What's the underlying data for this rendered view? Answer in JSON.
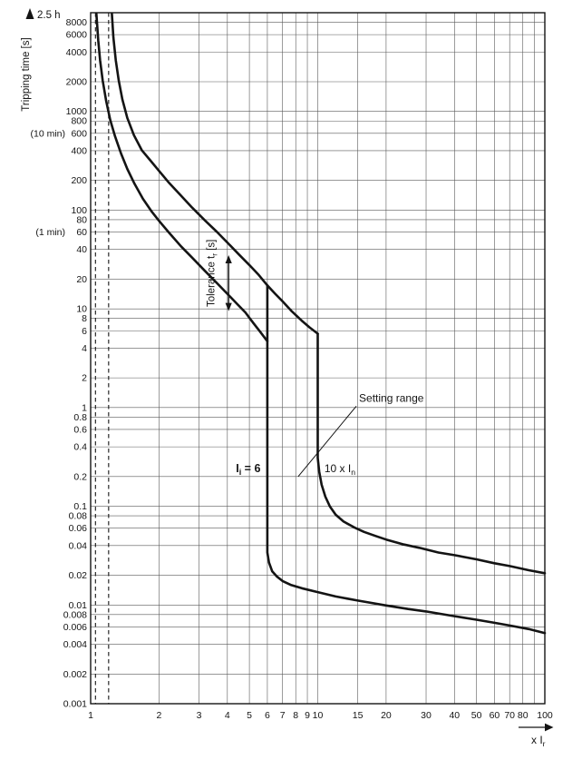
{
  "chart_data": {
    "type": "line",
    "x_axis": {
      "label_parts": [
        {
          "text": "x I"
        },
        {
          "text": "r",
          "sub": true
        }
      ],
      "scale": "log",
      "range": [
        1,
        100
      ],
      "tick_values": [
        1,
        2,
        3,
        4,
        5,
        6,
        7,
        8,
        9,
        10,
        15,
        20,
        30,
        40,
        50,
        60,
        70,
        80,
        100
      ],
      "tick_labels": [
        "1",
        "2",
        "3",
        "4",
        "5",
        "6",
        "7",
        "8",
        "9",
        "10",
        "15",
        "20",
        "30",
        "40",
        "50",
        "60",
        "70",
        "80",
        "100"
      ],
      "unlabeled_grid_values": [
        90
      ]
    },
    "y_axis": {
      "label_parts": [
        {
          "text": "Tripping time [s]"
        }
      ],
      "top_arrow_label": "2.5 h",
      "scale": "log",
      "range": [
        0.001,
        10000
      ],
      "tick_values": [
        8000,
        6000,
        4000,
        2000,
        1000,
        800,
        600,
        400,
        200,
        100,
        80,
        60,
        40,
        20,
        10,
        8,
        6,
        4,
        2,
        1,
        0.8,
        0.6,
        0.4,
        0.2,
        0.1,
        0.08,
        0.06,
        0.04,
        0.02,
        0.01,
        0.008,
        0.006,
        0.004,
        0.002,
        0.001
      ],
      "tick_labels": [
        "8000",
        "6000",
        "4000",
        "2000",
        "1000",
        "800",
        "600",
        "400",
        "200",
        "100",
        "80",
        "60",
        "40",
        "20",
        "10",
        "8",
        "6",
        "4",
        "2",
        "1",
        "0.8",
        "0.6",
        "0.4",
        "0.2",
        "0.1",
        "0.08",
        "0.06",
        "0.04",
        "0.02",
        "0.01",
        "0.008",
        "0.006",
        "0.004",
        "0.002",
        "0.001"
      ],
      "side_notes": [
        {
          "value": 600,
          "label": "(10 min)"
        },
        {
          "value": 60,
          "label": "(1 min)"
        }
      ]
    },
    "dashed_asymptotes_x": [
      1.05,
      1.2
    ],
    "series": [
      {
        "name": "thermal-upper-tolerance",
        "points": [
          [
            1.24,
            9800
          ],
          [
            1.26,
            5600
          ],
          [
            1.29,
            3300
          ],
          [
            1.33,
            2050
          ],
          [
            1.38,
            1320
          ],
          [
            1.45,
            860
          ],
          [
            1.55,
            575
          ],
          [
            1.68,
            405
          ],
          [
            1.83,
            320
          ],
          [
            2.0,
            250
          ],
          [
            2.2,
            192
          ],
          [
            2.5,
            140
          ],
          [
            2.8,
            106
          ],
          [
            3.2,
            78
          ],
          [
            3.6,
            60
          ],
          [
            4.0,
            47
          ],
          [
            4.5,
            35.5
          ],
          [
            5.0,
            27.8
          ],
          [
            5.5,
            22
          ],
          [
            6.0,
            17.3
          ],
          [
            6.5,
            14.2
          ],
          [
            7.0,
            11.9
          ],
          [
            7.7,
            9.4
          ],
          [
            8.5,
            7.6
          ],
          [
            9.2,
            6.5
          ],
          [
            10.0,
            5.6
          ]
        ]
      },
      {
        "name": "thermal-lower-tolerance",
        "points": [
          [
            1.06,
            9800
          ],
          [
            1.08,
            5200
          ],
          [
            1.1,
            3300
          ],
          [
            1.13,
            2050
          ],
          [
            1.17,
            1280
          ],
          [
            1.22,
            820
          ],
          [
            1.28,
            560
          ],
          [
            1.36,
            375
          ],
          [
            1.45,
            262
          ],
          [
            1.56,
            185
          ],
          [
            1.7,
            130
          ],
          [
            1.85,
            98
          ],
          [
            2.0,
            78
          ],
          [
            2.2,
            60
          ],
          [
            2.5,
            43
          ],
          [
            2.8,
            33
          ],
          [
            3.2,
            24
          ],
          [
            3.6,
            18.2
          ],
          [
            4.0,
            14.2
          ],
          [
            4.4,
            11.3
          ],
          [
            4.8,
            9.2
          ],
          [
            5.2,
            7.2
          ],
          [
            5.6,
            5.8
          ],
          [
            6.0,
            4.7
          ]
        ]
      },
      {
        "name": "instantaneous-lower-boundary",
        "points": [
          [
            6,
            17.3
          ],
          [
            6,
            0.034
          ],
          [
            6.1,
            0.027
          ],
          [
            6.3,
            0.022
          ],
          [
            6.6,
            0.0195
          ],
          [
            7.0,
            0.0175
          ],
          [
            7.6,
            0.016
          ],
          [
            8.5,
            0.0148
          ],
          [
            10,
            0.0135
          ],
          [
            12,
            0.0122
          ],
          [
            15,
            0.0111
          ],
          [
            20,
            0.0099
          ],
          [
            25,
            0.0091
          ],
          [
            30,
            0.0086
          ],
          [
            40,
            0.0077
          ],
          [
            50,
            0.0071
          ],
          [
            60,
            0.0066
          ],
          [
            70,
            0.0062
          ],
          [
            85,
            0.0057
          ],
          [
            100,
            0.0052
          ]
        ]
      },
      {
        "name": "instantaneous-upper-boundary",
        "points": [
          [
            10,
            5.6
          ],
          [
            10,
            0.31
          ],
          [
            10.15,
            0.225
          ],
          [
            10.4,
            0.165
          ],
          [
            10.8,
            0.125
          ],
          [
            11.3,
            0.1
          ],
          [
            12,
            0.082
          ],
          [
            13,
            0.07
          ],
          [
            14.5,
            0.061
          ],
          [
            16,
            0.055
          ],
          [
            18,
            0.05
          ],
          [
            20,
            0.046
          ],
          [
            24,
            0.041
          ],
          [
            28,
            0.038
          ],
          [
            34,
            0.034
          ],
          [
            40,
            0.032
          ],
          [
            50,
            0.029
          ],
          [
            60,
            0.0265
          ],
          [
            70,
            0.0248
          ],
          [
            85,
            0.0225
          ],
          [
            100,
            0.021
          ]
        ]
      }
    ],
    "annotations": {
      "tolerance_band": {
        "label_parts": [
          {
            "text": "Tolerance t"
          },
          {
            "text": "r",
            "sub": true
          },
          {
            "text": " [s]"
          }
        ],
        "text_at": {
          "x": 3.5,
          "t": 23
        },
        "arrow": {
          "x": 4.05,
          "t_top": 35,
          "t_bottom": 9.5
        }
      },
      "instantaneous_pickup": {
        "label_parts": [
          {
            "text": "I"
          },
          {
            "text": "i",
            "sub": true
          },
          {
            "text": " = 6"
          }
        ],
        "at": {
          "x": 5.6,
          "t": 0.24
        },
        "anchor": "end",
        "bold": true
      },
      "ten_times_rated": {
        "label_parts": [
          {
            "text": "10 x I"
          },
          {
            "text": "n",
            "sub": true
          }
        ],
        "at": {
          "x": 10.7,
          "t": 0.24
        },
        "anchor": "start"
      },
      "setting_range": {
        "label_parts": [
          {
            "text": "Setting range"
          }
        ],
        "at": {
          "x": 15.2,
          "t": 1.15
        },
        "anchor": "start",
        "pointer_to": {
          "x": 8.2,
          "t": 0.2
        }
      }
    }
  }
}
